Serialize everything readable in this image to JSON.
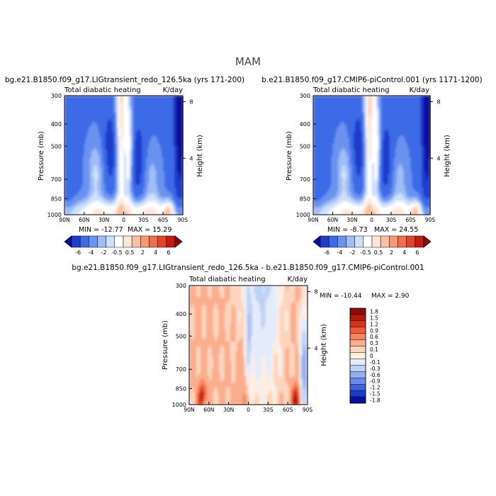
{
  "figure": {
    "season_title": "MAM"
  },
  "chart_data": [
    {
      "type": "heatmap",
      "panel": "left",
      "title": "bg.e21.B1850.f09_g17.LIGtransient_redo_126.5ka (yrs 171-200)",
      "subtitle_left": "Total diabatic heating",
      "subtitle_right": "K/day",
      "ylabel": "Pressure (mb)",
      "ylabel_right": "Height (km)",
      "x_ticks": [
        "90N",
        "60N",
        "30N",
        "0",
        "30S",
        "60S",
        "90S"
      ],
      "y_ticks": [
        "300",
        "400",
        "500",
        "700",
        "850",
        "1000"
      ],
      "y_ticks_right": [
        "8",
        "4"
      ],
      "min_label": "MIN =  -12.77",
      "max_label": "MAX =   15.29",
      "stats": {
        "min": -12.77,
        "max": 15.29
      },
      "colorbar_labels": [
        "-6",
        "-4",
        "-2",
        "-0.5",
        "0.5",
        "2",
        "4",
        "6"
      ]
    },
    {
      "type": "heatmap",
      "panel": "right",
      "title": "b.e21.B1850.f09_g17.CMIP6-piControl.001 (yrs 1171-1200)",
      "subtitle_left": "Total diabatic heating",
      "subtitle_right": "K/day",
      "ylabel": "Pressure (mb)",
      "ylabel_right": "Height (km)",
      "x_ticks": [
        "90N",
        "60N",
        "30N",
        "0",
        "30S",
        "60S",
        "90S"
      ],
      "y_ticks": [
        "300",
        "400",
        "500",
        "700",
        "850",
        "1000"
      ],
      "y_ticks_right": [
        "8",
        "4"
      ],
      "min_label": "MIN =   -8.73",
      "max_label": "MAX =   24.55",
      "stats": {
        "min": -8.73,
        "max": 24.55
      },
      "colorbar_labels": [
        "-6",
        "-4",
        "-2",
        "-0.5",
        "0.5",
        "2",
        "4",
        "6"
      ]
    },
    {
      "type": "heatmap",
      "panel": "difference",
      "title": "bg.e21.B1850.f09_g17.LIGtransient_redo_126.5ka - b.e21.B1850.f09_g17.CMIP6-piControl.001",
      "subtitle_left": "Total diabatic heating",
      "subtitle_right": "K/day",
      "ylabel": "Pressure (mb)",
      "ylabel_right": "Height (km)",
      "x_ticks": [
        "90N",
        "60N",
        "30N",
        "0",
        "30S",
        "60S",
        "90S"
      ],
      "y_ticks": [
        "300",
        "400",
        "500",
        "700",
        "850",
        "1000"
      ],
      "y_ticks_right": [
        "8",
        "4"
      ],
      "min_label": "MIN =  -10.44",
      "max_label": "MAX =    2.90",
      "stats": {
        "min": -10.44,
        "max": 2.9
      },
      "colorbar_labels": [
        "1.8",
        "1.5",
        "1.2",
        "0.9",
        "0.6",
        "0.3",
        "0.1",
        "0",
        "-0.1",
        "-0.3",
        "-0.6",
        "-0.9",
        "-1.2",
        "-1.5",
        "-1.8"
      ]
    }
  ],
  "colors": {
    "main_scale": [
      "#08109c",
      "#1f3ccc",
      "#3d6ae6",
      "#6b93f0",
      "#9fbdf6",
      "#cfe0fb",
      "#ffffff",
      "#fde7da",
      "#f9c0a3",
      "#f59a74",
      "#ef6e4d",
      "#df4528",
      "#c41a12",
      "#8e0c08"
    ],
    "diff_scale": [
      "#8e0c08",
      "#b11a0f",
      "#d43518",
      "#ee5a3a",
      "#f58560",
      "#f9ae8e",
      "#fcd5bf",
      "#fdeee3",
      "#e4ecfb",
      "#bfd1f5",
      "#93aeee",
      "#6a8ce6",
      "#3e62da",
      "#1b3bc4",
      "#08109c"
    ]
  }
}
